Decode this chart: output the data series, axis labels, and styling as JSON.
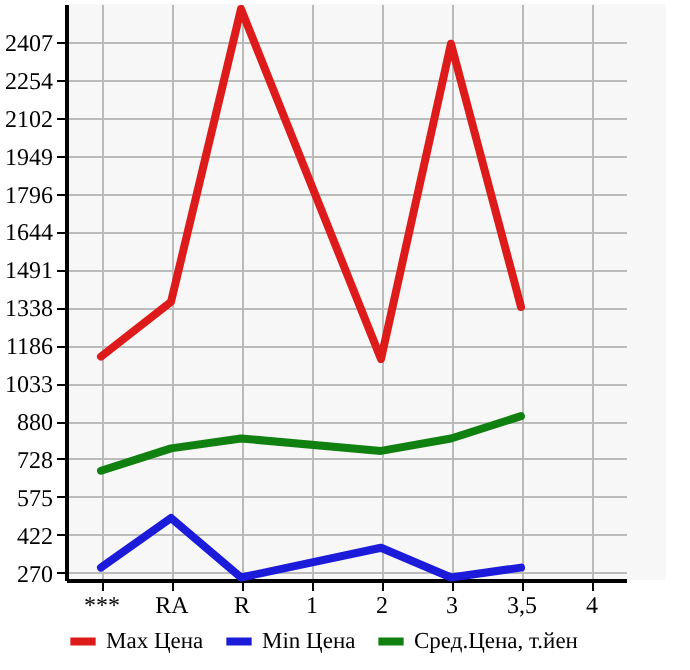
{
  "chart_data": {
    "type": "line",
    "categories": [
      "***",
      "RA",
      "R",
      "1",
      "2",
      "3",
      "3,5",
      "4"
    ],
    "series": [
      {
        "name": "Max Цена",
        "color": "#dd1b1b",
        "values": [
          1140,
          1360,
          2540,
          null,
          1130,
          2400,
          1340,
          null
        ]
      },
      {
        "name": "Min Цена",
        "color": "#1b1bd9",
        "values": [
          290,
          490,
          250,
          null,
          370,
          250,
          290,
          null
        ]
      },
      {
        "name": "Сред.Цена, т.йен",
        "color": "#108010",
        "values": [
          680,
          770,
          810,
          null,
          760,
          810,
          900,
          null
        ]
      }
    ],
    "ylim": [
      240,
      2560
    ],
    "yticks": [
      270,
      422,
      575,
      728,
      880,
      1033,
      1186,
      1338,
      1491,
      1644,
      1796,
      1949,
      2102,
      2254,
      2407
    ],
    "grid": true,
    "legend": "bottom",
    "marker": "none",
    "line_style": "solid"
  }
}
